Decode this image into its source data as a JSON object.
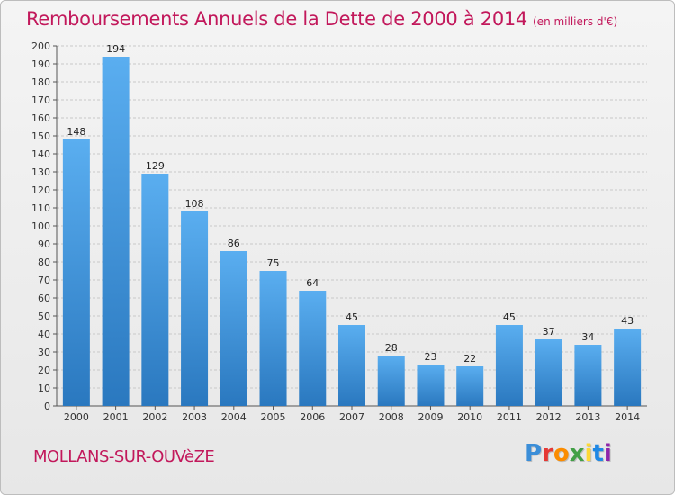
{
  "header": {
    "title": "Remboursements Annuels de la Dette de 2000 à 2014",
    "unit": "(en milliers d'€)"
  },
  "footer": {
    "commune": "MOLLANS-SUR-OUVèZE",
    "logo_letters": [
      "P",
      "r",
      "o",
      "x",
      "i",
      "t",
      "i"
    ],
    "logo_colors": [
      "#3b8ed8",
      "#e53935",
      "#fb8c00",
      "#43a047",
      "#fdd835",
      "#1e88e5",
      "#8e24aa"
    ]
  },
  "chart_data": {
    "type": "bar",
    "title": "Remboursements Annuels de la Dette de 2000 à 2014",
    "xlabel": "",
    "ylabel": "",
    "ylim": [
      0,
      200
    ],
    "yticks": [
      0,
      10,
      20,
      30,
      40,
      50,
      60,
      70,
      80,
      90,
      100,
      110,
      120,
      130,
      140,
      150,
      160,
      170,
      180,
      190,
      200
    ],
    "grid": true,
    "categories": [
      "2000",
      "2001",
      "2002",
      "2003",
      "2004",
      "2005",
      "2006",
      "2007",
      "2008",
      "2009",
      "2010",
      "2011",
      "2012",
      "2013",
      "2014"
    ],
    "values": [
      148,
      194,
      129,
      108,
      86,
      75,
      64,
      45,
      28,
      23,
      22,
      45,
      37,
      34,
      43
    ],
    "bar_color_top": "#5aaef0",
    "bar_color_bottom": "#2a78bf"
  }
}
